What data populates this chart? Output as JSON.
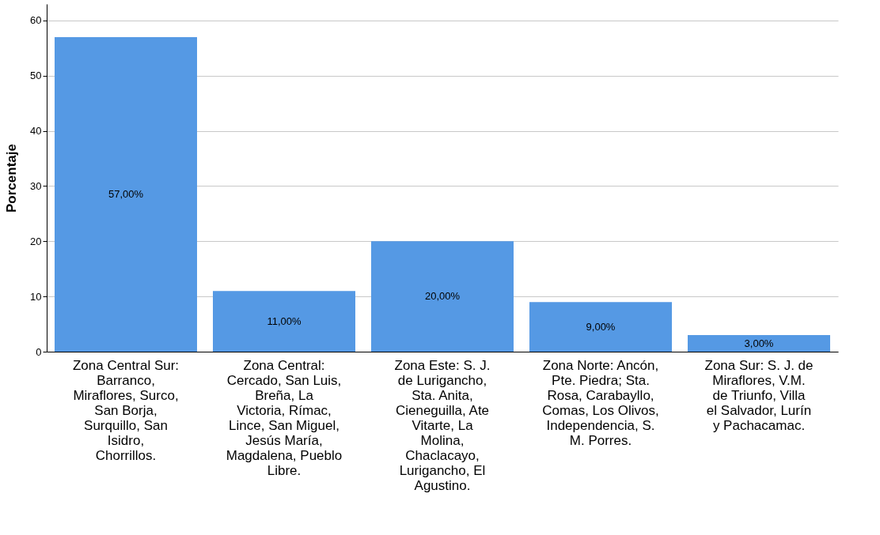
{
  "chart_data": {
    "type": "bar",
    "ylabel": "Porcentaje",
    "categories": [
      "Zona Central Sur: Barranco, Miraflores, Surco, San Borja, Surquillo, San Isidro, Chorrillos.",
      "Zona Central: Cercado, San Luis, Breña, La Victoria, Rímac, Lince, San Miguel, Jesús María, Magdalena, Pueblo Libre.",
      "Zona Este: S. J. de Lurigancho, Sta. Anita, Cieneguilla, Ate Vitarte, La Molina, Chaclacayo, Lurigancho, El Agustino.",
      "Zona Norte: Ancón, Pte. Piedra; Sta. Rosa, Carabayllo, Comas, Los Olivos, Independencia, S. M. Porres.",
      "Zona Sur: S. J. de Miraflores, V.M. de Triunfo, Villa el Salvador, Lurín y Pachacamac."
    ],
    "values": [
      57,
      11,
      20,
      9,
      3
    ],
    "value_labels": [
      "57,00%",
      "11,00%",
      "20,00%",
      "9,00%",
      "3,00%"
    ],
    "color": "#5599e4",
    "ylim": [
      0,
      63
    ],
    "yticks": [
      0,
      10,
      20,
      30,
      40,
      50,
      60
    ],
    "grid": "y"
  }
}
